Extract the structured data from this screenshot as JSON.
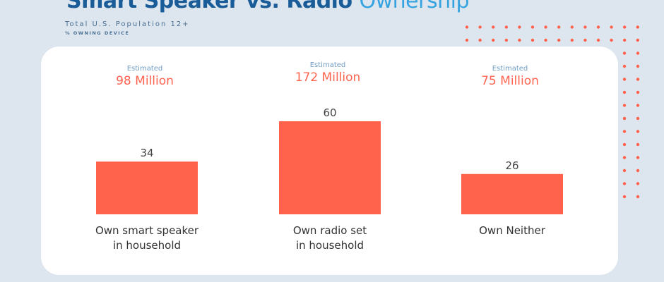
{
  "header": {
    "title_main": "Smart Speaker vs. Radio",
    "title_accent": "Ownership",
    "subtitle": "Total U.S. Population 12+",
    "measure": "% OWNING DEVICE"
  },
  "colors": {
    "bar": "#ff634c",
    "title": "#1a5c97",
    "accent": "#35a3df",
    "dots": "#ff634c",
    "background": "#dde6ee"
  },
  "chart_data": {
    "type": "bar",
    "categories": [
      "Own smart speaker in household",
      "Own radio set in household",
      "Own Neither"
    ],
    "category_lines": [
      [
        "Own smart speaker",
        "in household"
      ],
      [
        "Own radio set",
        "in household"
      ],
      [
        "Own Neither"
      ]
    ],
    "values": [
      34,
      60,
      26
    ],
    "annotations": [
      {
        "label": "Estimated",
        "value": "98 Million"
      },
      {
        "label": "Estimated",
        "value": "172 Million"
      },
      {
        "label": "Estimated",
        "value": "75 Million"
      }
    ],
    "grid": false,
    "ylim": [
      0,
      60
    ]
  }
}
